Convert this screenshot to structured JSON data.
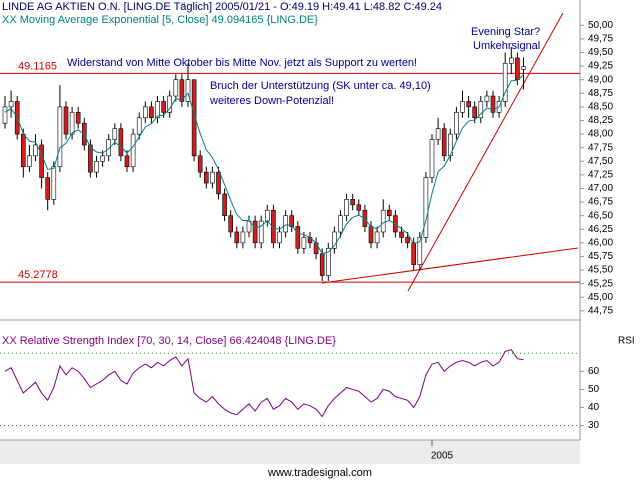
{
  "header": {
    "title": "LINDE AG AKTIEN O.N. [LING.DE  Täglich] 2005/01/21 - O:49.19 H:49.41 L:48.82 C:49.24"
  },
  "annotations": [
    "Widerstand von Mitte Oktober bis Mitte Nov. jetzt als Support zu werten!",
    "Bruch der Unterstützung (SK unter ca. 49,10)",
    "weiteres Down-Potenzial!",
    "Evening Star?",
    "Umkehrsignal"
  ],
  "footer": "www.tradesignal.com",
  "chart_data": [
    {
      "type": "candlestick",
      "categories": [
        null,
        null,
        null,
        null,
        null,
        null,
        null,
        null,
        null,
        null,
        null,
        null,
        null,
        null,
        null,
        null,
        null,
        null,
        null,
        null,
        null,
        null,
        null,
        null,
        null,
        null,
        null,
        null,
        null,
        null,
        null,
        null,
        null,
        null,
        null,
        null,
        null,
        null,
        null,
        null,
        null,
        null,
        null,
        null,
        null,
        null,
        null,
        null,
        null,
        null,
        null,
        null,
        null,
        null,
        null,
        null,
        null,
        null,
        null,
        null,
        null,
        null,
        null,
        null,
        null,
        null,
        null,
        null,
        null,
        null,
        "2005",
        null,
        null,
        null,
        null,
        null,
        null,
        null,
        null,
        null,
        null,
        null,
        null,
        null,
        null,
        null
      ],
      "open": [
        48.2,
        48.5,
        48.6,
        48.0,
        47.4,
        47.6,
        47.8,
        47.2,
        46.8,
        47.4,
        48.5,
        48.0,
        48.4,
        48.2,
        47.8,
        47.3,
        47.5,
        47.6,
        47.9,
        48.1,
        47.6,
        47.4,
        48.0,
        48.3,
        48.5,
        48.3,
        48.6,
        48.4,
        48.7,
        49.0,
        48.6,
        49.0,
        47.6,
        47.3,
        47.1,
        47.3,
        46.9,
        46.5,
        46.2,
        46.0,
        46.2,
        46.4,
        46.0,
        46.4,
        46.6,
        46.0,
        46.2,
        46.5,
        46.3,
        45.9,
        46.1,
        46.0,
        45.8,
        45.4,
        45.9,
        46.2,
        46.5,
        46.8,
        46.7,
        46.6,
        46.3,
        46.0,
        46.2,
        46.6,
        46.5,
        46.2,
        46.1,
        46.0,
        45.6,
        46.1,
        47.2,
        47.9,
        48.1,
        47.6,
        48.0,
        48.4,
        48.6,
        48.5,
        48.3,
        48.6,
        48.7,
        48.4,
        48.6,
        49.3,
        49.4,
        49.19
      ],
      "high": [
        48.7,
        48.8,
        48.7,
        48.1,
        47.8,
        48.0,
        47.9,
        47.3,
        47.5,
        48.9,
        48.6,
        48.5,
        48.5,
        48.3,
        47.9,
        47.6,
        47.7,
        48.0,
        48.2,
        48.2,
        47.7,
        48.1,
        48.4,
        48.6,
        48.6,
        48.7,
        48.7,
        48.8,
        49.1,
        49.1,
        49.3,
        49.0,
        47.7,
        47.4,
        47.4,
        47.4,
        47.0,
        46.6,
        46.3,
        46.3,
        46.5,
        46.5,
        46.5,
        46.7,
        46.7,
        46.3,
        46.6,
        46.6,
        46.4,
        46.2,
        46.2,
        46.1,
        45.9,
        46.0,
        46.3,
        46.6,
        46.9,
        46.9,
        46.8,
        46.7,
        46.4,
        46.3,
        46.8,
        46.7,
        46.6,
        46.3,
        46.2,
        46.1,
        46.2,
        47.3,
        48.0,
        48.3,
        48.2,
        48.1,
        48.5,
        48.8,
        48.7,
        48.6,
        48.7,
        48.8,
        48.8,
        48.7,
        49.5,
        49.6,
        49.5,
        49.41
      ],
      "low": [
        48.1,
        48.3,
        47.9,
        47.2,
        47.3,
        47.5,
        47.0,
        46.6,
        46.7,
        47.3,
        47.9,
        47.9,
        48.1,
        47.7,
        47.2,
        47.2,
        47.4,
        47.5,
        47.8,
        47.5,
        47.3,
        47.3,
        47.9,
        48.2,
        48.2,
        48.2,
        48.3,
        48.3,
        48.6,
        48.5,
        48.5,
        47.5,
        47.2,
        47.0,
        47.0,
        46.8,
        46.4,
        46.1,
        45.9,
        45.9,
        46.1,
        45.9,
        45.9,
        46.3,
        45.9,
        45.9,
        46.1,
        46.2,
        45.8,
        45.8,
        45.9,
        45.7,
        45.3,
        45.3,
        45.8,
        46.1,
        46.4,
        46.6,
        46.5,
        46.2,
        45.9,
        45.9,
        46.1,
        46.4,
        46.1,
        46.0,
        45.9,
        45.5,
        45.5,
        46.0,
        47.1,
        47.8,
        47.5,
        47.5,
        47.9,
        48.3,
        48.3,
        48.2,
        48.2,
        48.5,
        48.3,
        48.3,
        48.5,
        49.1,
        48.9,
        48.82
      ],
      "close": [
        48.5,
        48.6,
        48.0,
        47.4,
        47.6,
        47.8,
        47.2,
        46.8,
        47.4,
        48.5,
        48.0,
        48.4,
        48.2,
        47.8,
        47.3,
        47.5,
        47.6,
        47.9,
        48.1,
        47.6,
        47.4,
        48.0,
        48.3,
        48.5,
        48.3,
        48.6,
        48.4,
        48.7,
        49.0,
        48.6,
        49.0,
        47.6,
        47.3,
        47.1,
        47.3,
        46.9,
        46.5,
        46.2,
        46.0,
        46.2,
        46.4,
        46.0,
        46.4,
        46.6,
        46.0,
        46.2,
        46.5,
        46.3,
        45.9,
        46.1,
        46.0,
        45.8,
        45.4,
        45.9,
        46.2,
        46.5,
        46.8,
        46.7,
        46.6,
        46.3,
        46.0,
        46.2,
        46.6,
        46.5,
        46.2,
        46.1,
        46.0,
        45.6,
        46.1,
        47.2,
        47.9,
        48.1,
        47.6,
        48.0,
        48.4,
        48.6,
        48.5,
        48.3,
        48.6,
        48.7,
        48.4,
        48.6,
        49.3,
        49.4,
        49.0,
        49.24
      ],
      "up_color": "#ffffff",
      "down_color": "#cc2020",
      "outline_color": "#000000",
      "ma": {
        "name": "XX Moving Average Exponential [5, Close] 49.094165 {LING.DE}",
        "color": "#008080",
        "values": [
          48.4,
          48.47,
          48.31,
          48.01,
          47.87,
          47.85,
          47.63,
          47.35,
          47.37,
          47.75,
          47.83,
          48.02,
          48.08,
          47.99,
          47.76,
          47.67,
          47.65,
          47.73,
          47.85,
          47.77,
          47.65,
          47.77,
          47.95,
          48.13,
          48.19,
          48.33,
          48.35,
          48.47,
          48.65,
          48.63,
          48.75,
          48.37,
          48.01,
          47.71,
          47.57,
          47.35,
          47.07,
          46.78,
          46.52,
          46.41,
          46.41,
          46.27,
          46.31,
          46.41,
          46.27,
          46.25,
          46.33,
          46.32,
          46.18,
          46.15,
          46.1,
          46.0,
          45.8,
          45.83,
          45.95,
          46.13,
          46.35,
          46.47,
          46.51,
          46.44,
          46.29,
          46.26,
          46.37,
          46.41,
          46.34,
          46.26,
          46.17,
          45.98,
          46.02,
          46.41,
          46.91,
          47.31,
          47.41,
          47.61,
          47.87,
          48.11,
          48.24,
          48.26,
          48.37,
          48.48,
          48.45,
          48.5,
          48.77,
          48.98,
          48.99,
          49.094165
        ]
      },
      "levels": [
        49.1165,
        45.2778
      ],
      "level_color": "#cc0000",
      "ylim": [
        44.6,
        50.3
      ],
      "yticks": [
        {
          "value": 44.75,
          "label": "44,75"
        },
        {
          "value": 45.0,
          "label": "45,00"
        },
        {
          "value": 45.25,
          "label": "45,25"
        },
        {
          "value": 45.5,
          "label": "45,50"
        },
        {
          "value": 45.75,
          "label": "45,75"
        },
        {
          "value": 46.0,
          "label": "46,00"
        },
        {
          "value": 46.25,
          "label": "46,25"
        },
        {
          "value": 46.5,
          "label": "46,50"
        },
        {
          "value": 46.75,
          "label": "46,75"
        },
        {
          "value": 47.0,
          "label": "47,00"
        },
        {
          "value": 47.25,
          "label": "47,25"
        },
        {
          "value": 47.5,
          "label": "47,50"
        },
        {
          "value": 47.75,
          "label": "47,75"
        },
        {
          "value": 48.0,
          "label": "48,00"
        },
        {
          "value": 48.25,
          "label": "48,25"
        },
        {
          "value": 48.5,
          "label": "48,50"
        },
        {
          "value": 48.75,
          "label": "48,75"
        },
        {
          "value": 49.0,
          "label": "49,00"
        },
        {
          "value": 49.25,
          "label": "49,25"
        },
        {
          "value": 49.5,
          "label": "49,50"
        },
        {
          "value": 49.75,
          "label": "49,75"
        },
        {
          "value": 50.0,
          "label": "50,00"
        }
      ]
    },
    {
      "type": "line",
      "y_label": "RSI",
      "series": [
        {
          "name": "XX Relative Strength Index [70, 30, 14, Close] 66.424048 {LING.DE}",
          "color": "#800080",
          "values": [
            60,
            62,
            55,
            48,
            51,
            54,
            48,
            44,
            51,
            63,
            58,
            62,
            60,
            56,
            51,
            53,
            55,
            58,
            60,
            55,
            53,
            59,
            62,
            64,
            62,
            65,
            63,
            66,
            68,
            63,
            67,
            48,
            45,
            43,
            46,
            42,
            39,
            37,
            36,
            39,
            42,
            38,
            43,
            45,
            39,
            41,
            45,
            43,
            39,
            42,
            41,
            39,
            35,
            41,
            45,
            48,
            51,
            50,
            49,
            46,
            43,
            45,
            50,
            49,
            46,
            45,
            44,
            40,
            46,
            58,
            64,
            65,
            60,
            63,
            65,
            66,
            65,
            63,
            65,
            66,
            63,
            65,
            71,
            72,
            67,
            66.424048
          ]
        }
      ],
      "bands": [
        70,
        30
      ],
      "band_color": "#2a8a2a",
      "ylim": [
        22,
        84
      ],
      "yticks": [
        30,
        40,
        50,
        60
      ]
    }
  ]
}
